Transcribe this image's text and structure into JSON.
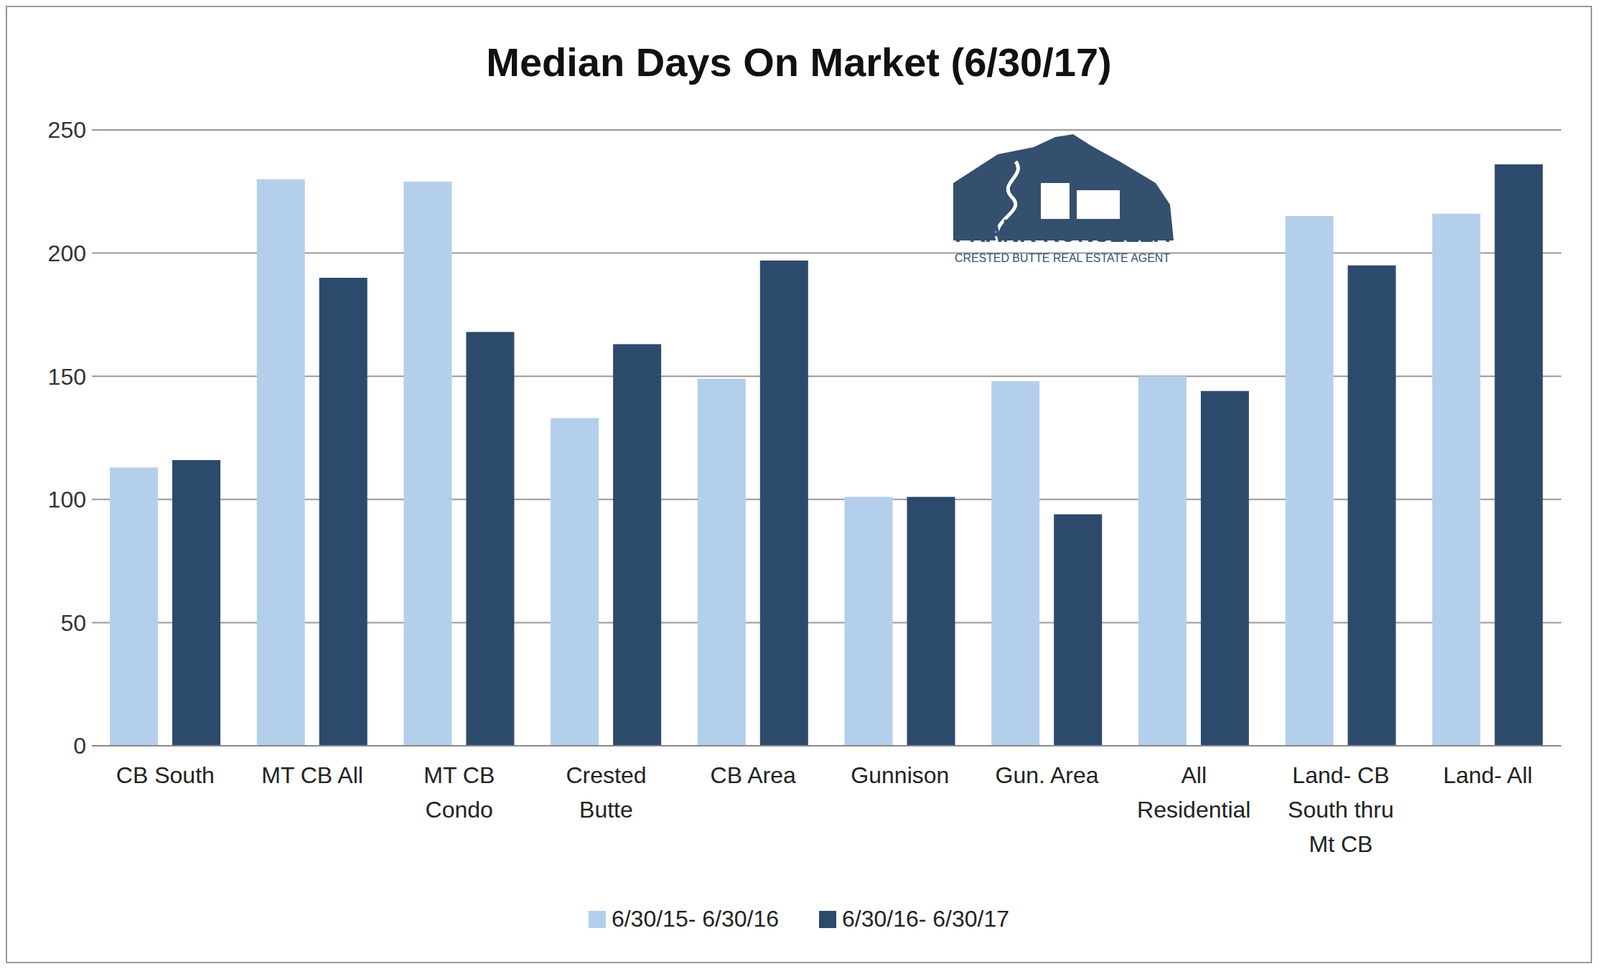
{
  "chart_data": {
    "type": "bar",
    "title": "Median Days On Market (6/30/17)",
    "categories": [
      "CB South",
      "MT CB All",
      "MT CB Condo",
      "Crested Butte",
      "CB Area",
      "Gunnison",
      "Gun. Area",
      "All Residential",
      "Land- CB South thru Mt CB",
      "Land- All"
    ],
    "series": [
      {
        "name": "6/30/15- 6/30/16",
        "color": "#b4cfec",
        "values": [
          113,
          230,
          229,
          133,
          149,
          101,
          148,
          150,
          215,
          216
        ]
      },
      {
        "name": "6/30/16- 6/30/17",
        "color": "#2c4a6b",
        "values": [
          116,
          190,
          168,
          163,
          197,
          101,
          94,
          144,
          195,
          236
        ]
      }
    ],
    "ylim": [
      0,
      250
    ],
    "yticks": [
      0,
      50,
      100,
      150,
      200,
      250
    ],
    "grid": true,
    "legend": "bottom",
    "annotations": [
      "FRANK KONSELLA",
      "CRESTED BUTTE REAL ESTATE AGENT"
    ]
  }
}
